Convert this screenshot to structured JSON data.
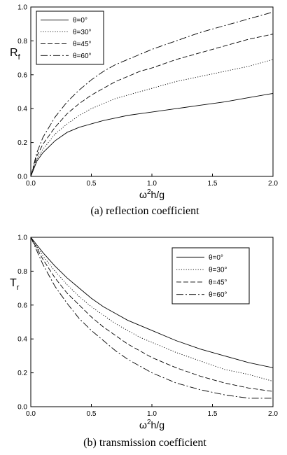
{
  "chart_data": [
    {
      "type": "line",
      "caption": "(a)  reflection  coefficient",
      "ylabel_main": "R",
      "ylabel_sub": "f",
      "xlabel_main": "ω",
      "xlabel_sup": "2",
      "xlabel_tail": "h/g",
      "xlim": [
        0,
        2.0
      ],
      "ylim": [
        0,
        1.0
      ],
      "xticks": [
        "0.0",
        "0.5",
        "1.0",
        "1.5",
        "2.0"
      ],
      "yticks": [
        "0.0",
        "0.2",
        "0.4",
        "0.6",
        "0.8",
        "1.0"
      ],
      "legend_position": "top-left",
      "x": [
        0,
        0.05,
        0.1,
        0.2,
        0.3,
        0.4,
        0.5,
        0.6,
        0.7,
        0.8,
        0.9,
        1.0,
        1.2,
        1.4,
        1.6,
        1.8,
        2.0
      ],
      "series": [
        {
          "name": "θ=0°",
          "style": "solid",
          "values": [
            0,
            0.09,
            0.14,
            0.21,
            0.26,
            0.29,
            0.31,
            0.33,
            0.345,
            0.36,
            0.37,
            0.38,
            0.4,
            0.42,
            0.44,
            0.465,
            0.49
          ]
        },
        {
          "name": "θ=30°",
          "style": "dotted",
          "values": [
            0,
            0.1,
            0.16,
            0.25,
            0.31,
            0.36,
            0.4,
            0.43,
            0.46,
            0.48,
            0.5,
            0.52,
            0.56,
            0.59,
            0.62,
            0.65,
            0.69
          ]
        },
        {
          "name": "θ=45°",
          "style": "dashed",
          "values": [
            0,
            0.12,
            0.19,
            0.29,
            0.37,
            0.43,
            0.48,
            0.52,
            0.56,
            0.59,
            0.62,
            0.64,
            0.69,
            0.73,
            0.77,
            0.81,
            0.84
          ]
        },
        {
          "name": "θ=60°",
          "style": "dashdot",
          "values": [
            0,
            0.14,
            0.23,
            0.35,
            0.44,
            0.51,
            0.57,
            0.62,
            0.66,
            0.69,
            0.72,
            0.75,
            0.8,
            0.85,
            0.89,
            0.93,
            0.97
          ]
        }
      ]
    },
    {
      "type": "line",
      "caption": "(b)  transmission  coefficient",
      "ylabel_main": "T",
      "ylabel_sub": "r",
      "xlabel_main": "ω",
      "xlabel_sup": "2",
      "xlabel_tail": "h/g",
      "xlim": [
        0,
        2.0
      ],
      "ylim": [
        0,
        1.0
      ],
      "xticks": [
        "0.0",
        "0.5",
        "1.0",
        "1.5",
        "2.0"
      ],
      "yticks": [
        "0.0",
        "0.2",
        "0.4",
        "0.6",
        "0.8",
        "1.0"
      ],
      "legend_position": "top-right",
      "x": [
        0,
        0.1,
        0.2,
        0.3,
        0.4,
        0.5,
        0.6,
        0.7,
        0.8,
        0.9,
        1.0,
        1.2,
        1.4,
        1.6,
        1.8,
        2.0
      ],
      "series": [
        {
          "name": "θ=0°",
          "style": "solid",
          "values": [
            1.0,
            0.91,
            0.83,
            0.76,
            0.7,
            0.64,
            0.59,
            0.55,
            0.51,
            0.48,
            0.45,
            0.39,
            0.34,
            0.3,
            0.26,
            0.23
          ]
        },
        {
          "name": "θ=30°",
          "style": "dotted",
          "values": [
            1.0,
            0.89,
            0.8,
            0.72,
            0.65,
            0.59,
            0.54,
            0.49,
            0.45,
            0.41,
            0.38,
            0.32,
            0.27,
            0.22,
            0.19,
            0.15
          ]
        },
        {
          "name": "θ=45°",
          "style": "dashed",
          "values": [
            1.0,
            0.87,
            0.76,
            0.67,
            0.6,
            0.53,
            0.47,
            0.42,
            0.37,
            0.33,
            0.29,
            0.23,
            0.18,
            0.14,
            0.11,
            0.09
          ]
        },
        {
          "name": "θ=60°",
          "style": "dashdot",
          "values": [
            1.0,
            0.84,
            0.71,
            0.61,
            0.52,
            0.45,
            0.39,
            0.33,
            0.28,
            0.24,
            0.2,
            0.14,
            0.1,
            0.07,
            0.05,
            0.05
          ]
        }
      ]
    }
  ]
}
